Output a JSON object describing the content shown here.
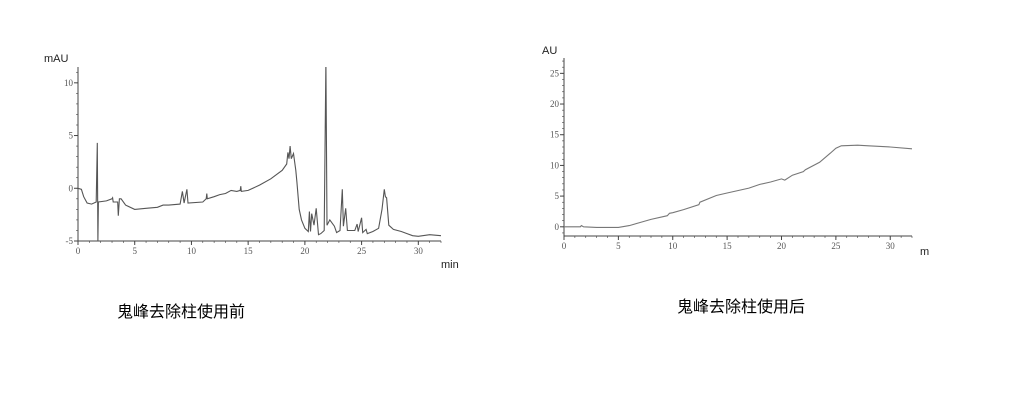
{
  "chart_data": [
    {
      "type": "line",
      "ylabel": "mAU",
      "xlabel": "min",
      "caption": "鬼峰去除柱使用前",
      "xlim": [
        0,
        32
      ],
      "ylim": [
        -5,
        11.5
      ],
      "xticks": [
        0,
        5,
        10,
        15,
        20,
        25,
        30
      ],
      "yticks": [
        -5,
        0,
        5,
        10
      ],
      "grid": false,
      "line_color": "#555555",
      "x": [
        0,
        0.3,
        0.5,
        0.8,
        1.2,
        1.6,
        1.7,
        1.75,
        1.8,
        2.5,
        3.0,
        3.05,
        3.1,
        3.5,
        3.55,
        3.65,
        3.8,
        4.2,
        5,
        6,
        7,
        7.5,
        8,
        9,
        9.2,
        9.35,
        9.6,
        9.7,
        11,
        11.3,
        11.35,
        11.4,
        12,
        12.5,
        13,
        13.5,
        14,
        14.3,
        14.35,
        14.4,
        15,
        16,
        17,
        17.5,
        18,
        18.4,
        18.5,
        18.6,
        18.7,
        18.8,
        19,
        19.2,
        19.3,
        19.5,
        19.7,
        20,
        20.3,
        20.4,
        20.5,
        20.6,
        20.8,
        21,
        21.2,
        21.4,
        21.7,
        21.85,
        21.95,
        22.2,
        22.6,
        22.8,
        23.1,
        23.3,
        23.4,
        23.6,
        23.75,
        24.4,
        24.6,
        24.7,
        25,
        25.1,
        25.4,
        25.5,
        26,
        26.5,
        26.8,
        27,
        27.1,
        27.2,
        27.4,
        27.8,
        28.5,
        29,
        29.5,
        30,
        31,
        32
      ],
      "y": [
        0,
        -0.1,
        -0.8,
        -1.4,
        -1.5,
        -1.3,
        4.3,
        -5,
        -1.3,
        -1.2,
        -1.0,
        -0.9,
        -1.3,
        -1.3,
        -2.6,
        -1.0,
        -1.0,
        -1.6,
        -2.0,
        -1.9,
        -1.8,
        -1.6,
        -1.6,
        -1.5,
        -0.3,
        -1.4,
        -0.1,
        -1.4,
        -1.3,
        -1.0,
        -0.5,
        -1.0,
        -0.8,
        -0.6,
        -0.5,
        -0.2,
        -0.3,
        -0.2,
        0.2,
        -0.3,
        -0.2,
        0.3,
        0.9,
        1.3,
        1.7,
        2.3,
        3.4,
        2.8,
        4.0,
        2.8,
        3.3,
        1.7,
        0.6,
        -2.0,
        -3.0,
        -3.8,
        -4.1,
        -2.2,
        -4.1,
        -2.4,
        -3.5,
        -1.9,
        -4.4,
        -4.3,
        -4.0,
        12,
        -3.5,
        -3.0,
        -3.6,
        -4.2,
        -4.0,
        -0.1,
        -3.6,
        -1.9,
        -4.0,
        -4.0,
        -3.4,
        -4.1,
        -2.8,
        -4.2,
        -3.9,
        -4.3,
        -4.1,
        -3.8,
        -2.0,
        -0.1,
        -0.8,
        -0.9,
        -3.5,
        -3.9,
        -4.1,
        -4.3,
        -4.5,
        -4.55,
        -4.4,
        -4.5
      ]
    },
    {
      "type": "line",
      "ylabel": "AU",
      "xlabel": "m",
      "caption": "鬼峰去除柱使用后",
      "xlim": [
        0,
        32
      ],
      "ylim": [
        -1.5,
        27.5
      ],
      "xticks": [
        0,
        5,
        10,
        15,
        20,
        25,
        30
      ],
      "yticks": [
        0,
        5,
        10,
        15,
        20,
        25
      ],
      "grid": false,
      "line_color": "#777777",
      "x": [
        0,
        1.5,
        1.6,
        1.8,
        3,
        5,
        6,
        7,
        8,
        9.5,
        9.7,
        10,
        11,
        12.4,
        12.5,
        14,
        15,
        17,
        18,
        19,
        20,
        20.3,
        21,
        22,
        22.2,
        23.5,
        24.5,
        25,
        25.5,
        27,
        28,
        30,
        32
      ],
      "y": [
        0,
        0,
        0.2,
        0,
        -0.1,
        -0.1,
        0.2,
        0.7,
        1.2,
        1.8,
        2.2,
        2.3,
        2.8,
        3.6,
        4,
        5.1,
        5.5,
        6.3,
        6.9,
        7.3,
        7.8,
        7.6,
        8.4,
        9,
        9.3,
        10.5,
        12,
        12.8,
        13.2,
        13.3,
        13.2,
        13,
        12.7
      ]
    }
  ]
}
